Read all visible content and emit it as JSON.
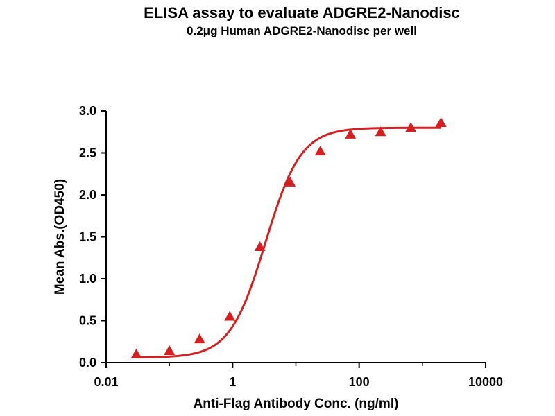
{
  "chart_data": {
    "type": "scatter",
    "title": "ELISA assay to evaluate ADGRE2-Nanodisc",
    "subtitle": "0.2μg Human ADGRE2-Nanodisc per well",
    "xlabel": "Anti-Flag Antibody Conc. (ng/ml)",
    "ylabel": "Mean Abs.(OD450)",
    "xscale": "log",
    "xlim": [
      0.01,
      10000
    ],
    "ylim": [
      0,
      3.0
    ],
    "x_ticks": [
      {
        "value": 0.01,
        "label": "0.01"
      },
      {
        "value": 1,
        "label": "1"
      },
      {
        "value": 100,
        "label": "100"
      },
      {
        "value": 10000,
        "label": "10000"
      }
    ],
    "y_ticks": [
      {
        "value": 0.0,
        "label": "0.0"
      },
      {
        "value": 0.5,
        "label": "0.5"
      },
      {
        "value": 1.0,
        "label": "1.0"
      },
      {
        "value": 1.5,
        "label": "1.5"
      },
      {
        "value": 2.0,
        "label": "2.0"
      },
      {
        "value": 2.5,
        "label": "2.5"
      },
      {
        "value": 3.0,
        "label": "3.0"
      }
    ],
    "grid": false,
    "legend": "none",
    "series": [
      {
        "marker": "triangle",
        "color": "#d42020",
        "fit": "4PL",
        "points": [
          {
            "x": 0.03,
            "y": 0.1
          },
          {
            "x": 0.1,
            "y": 0.14
          },
          {
            "x": 0.3,
            "y": 0.28
          },
          {
            "x": 0.9,
            "y": 0.55
          },
          {
            "x": 2.7,
            "y": 1.38
          },
          {
            "x": 8.1,
            "y": 2.15
          },
          {
            "x": 24.3,
            "y": 2.52
          },
          {
            "x": 72.9,
            "y": 2.72
          },
          {
            "x": 218.7,
            "y": 2.75
          },
          {
            "x": 656.1,
            "y": 2.8
          },
          {
            "x": 1968.3,
            "y": 2.86
          }
        ],
        "fit_params": {
          "bottom": 0.06,
          "top": 2.8,
          "ec50": 3.3,
          "hill": 1.55
        }
      }
    ]
  }
}
